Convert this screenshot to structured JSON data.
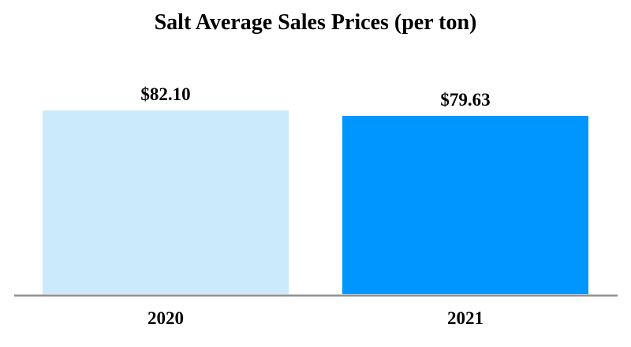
{
  "chart_data": {
    "type": "bar",
    "title": "Salt Average Sales Prices (per ton)",
    "categories": [
      "2020",
      "2021"
    ],
    "values": [
      82.1,
      79.63
    ],
    "value_labels": [
      "$82.10",
      "$79.63"
    ],
    "colors": [
      "#CBEAFB",
      "#0096FF"
    ],
    "xlabel": "",
    "ylabel": "",
    "ylim": [
      0,
      82.1
    ],
    "grid": false,
    "legend": "none",
    "axis_line_color": "#919191"
  }
}
